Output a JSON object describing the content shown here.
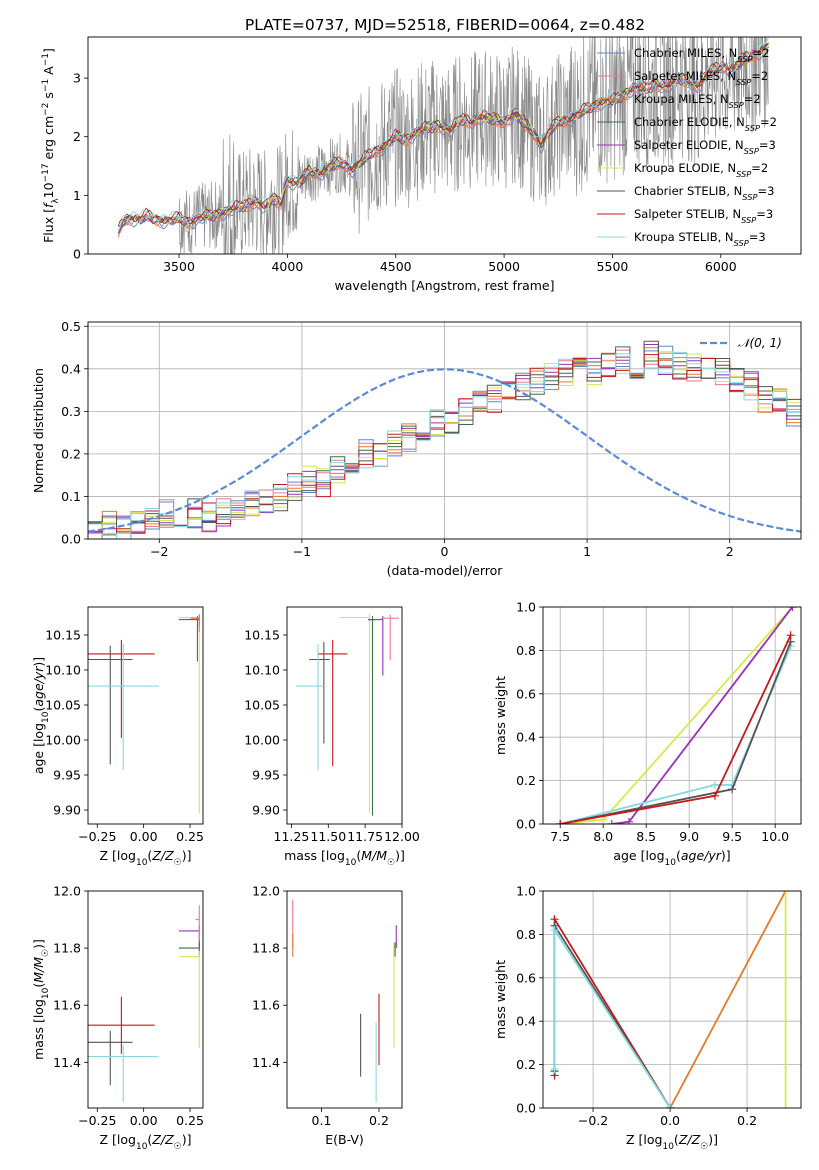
{
  "title": "PLATE=0737, MJD=52518, FIBERID=0064, z=0.482",
  "colors": {
    "chabrier_miles": "#5b86c9",
    "salpeter_miles": "#e87a8e",
    "kroupa_miles": "#e8792a",
    "chabrier_elodie": "#3c6e48",
    "salpeter_elodie": "#9b30b8",
    "kroupa_elodie": "#d7e84a",
    "chabrier_stelib": "#555555",
    "salpeter_stelib": "#c41a1a",
    "kroupa_stelib": "#86d8e0",
    "data": "#888888",
    "grid": "#b0b0b0",
    "gaussian": "#5b8bd8"
  },
  "chart_data": [
    {
      "id": "spectrum",
      "type": "line",
      "title": "PLATE=0737, MJD=52518, FIBERID=0064, z=0.482",
      "xlabel": "wavelength [Angstrom, rest frame]",
      "ylabel": "Flux [f_λ 10^-17 erg cm^-2 s^-1 A^-1]",
      "xlim": [
        3080,
        6370
      ],
      "ylim": [
        0,
        3.7
      ],
      "xticks": [
        3500,
        4000,
        4500,
        5000,
        5500,
        6000
      ],
      "yticks": [
        0,
        1,
        2,
        3
      ],
      "grid": false,
      "legend_loc": "upper right",
      "legend": [
        {
          "key": "chabrier_miles",
          "label": "Chabrier MILES, N_SSP=2"
        },
        {
          "key": "salpeter_miles",
          "label": "Salpeter MILES, N_SSP=2"
        },
        {
          "key": "kroupa_miles",
          "label": "Kroupa MILES, N_SSP=2"
        },
        {
          "key": "chabrier_elodie",
          "label": "Chabrier ELODIE, N_SSP=2"
        },
        {
          "key": "salpeter_elodie",
          "label": "Salpeter ELODIE, N_SSP=3"
        },
        {
          "key": "kroupa_elodie",
          "label": "Kroupa ELODIE, N_SSP=2"
        },
        {
          "key": "chabrier_stelib",
          "label": "Chabrier STELIB, N_SSP=3"
        },
        {
          "key": "salpeter_stelib",
          "label": "Salpeter STELIB, N_SSP=3"
        },
        {
          "key": "kroupa_stelib",
          "label": "Kroupa STELIB, N_SSP=3"
        }
      ],
      "model_x": [
        3220,
        3240,
        3260,
        3280,
        3300,
        3320,
        3350,
        3380,
        3420,
        3450,
        3500,
        3550,
        3600,
        3650,
        3700,
        3750,
        3800,
        3850,
        3900,
        3930,
        3970,
        4000,
        4050,
        4100,
        4150,
        4200,
        4250,
        4300,
        4350,
        4400,
        4450,
        4500,
        4550,
        4600,
        4650,
        4700,
        4750,
        4800,
        4850,
        4900,
        4950,
        5000,
        5050,
        5100,
        5150,
        5175,
        5200,
        5250,
        5300,
        5350,
        5400,
        5450,
        5500,
        5550,
        5600,
        5650,
        5700,
        5750,
        5800,
        5850,
        5890,
        5950,
        6000,
        6050,
        6100,
        6150,
        6200,
        6220
      ],
      "model_y": [
        0.38,
        0.55,
        0.6,
        0.62,
        0.6,
        0.58,
        0.65,
        0.6,
        0.58,
        0.57,
        0.6,
        0.55,
        0.62,
        0.65,
        0.7,
        0.78,
        0.82,
        0.9,
        0.8,
        0.95,
        0.85,
        1.25,
        1.2,
        1.4,
        1.38,
        1.5,
        1.55,
        1.45,
        1.6,
        1.75,
        1.85,
        2.0,
        1.95,
        2.1,
        2.15,
        2.2,
        2.1,
        2.3,
        2.25,
        2.35,
        2.3,
        2.25,
        2.4,
        2.2,
        2.0,
        1.85,
        2.05,
        2.25,
        2.3,
        2.4,
        2.5,
        2.6,
        2.6,
        2.7,
        2.85,
        2.8,
        2.9,
        2.85,
        3.0,
        2.95,
        2.85,
        3.1,
        3.2,
        3.15,
        3.3,
        3.4,
        3.5,
        3.55
      ],
      "data_note": "observed spectrum drawn as noisy grey trace"
    },
    {
      "id": "residuals",
      "type": "line",
      "xlabel": "(data-model)/error",
      "ylabel": "Normed distribution",
      "xlim": [
        -2.5,
        2.5
      ],
      "ylim": [
        0,
        0.51
      ],
      "xticks": [
        -2,
        -1,
        0,
        1,
        2
      ],
      "yticks": [
        0.0,
        0.1,
        0.2,
        0.3,
        0.4,
        0.5
      ],
      "grid": true,
      "legend_loc": "upper right",
      "gaussian_label": "𝒩(0, 1)",
      "bin_width": 0.1,
      "hist_base": [
        0.02,
        0.03,
        0.02,
        0.04,
        0.05,
        0.06,
        0.05,
        0.06,
        0.05,
        0.06,
        0.07,
        0.08,
        0.09,
        0.1,
        0.12,
        0.14,
        0.13,
        0.16,
        0.17,
        0.2,
        0.2,
        0.22,
        0.24,
        0.25,
        0.27,
        0.28,
        0.3,
        0.32,
        0.33,
        0.35,
        0.36,
        0.37,
        0.38,
        0.39,
        0.4,
        0.39,
        0.41,
        0.42,
        0.41,
        0.43,
        0.42,
        0.41,
        0.4,
        0.41,
        0.39,
        0.37,
        0.36,
        0.33,
        0.32,
        0.3,
        0.28,
        0.26,
        0.24,
        0.23,
        0.2,
        0.18,
        0.17,
        0.15,
        0.13,
        0.12,
        0.1,
        0.09,
        0.08,
        0.07,
        0.06,
        0.06,
        0.05,
        0.05,
        0.04,
        0.04,
        0.03,
        0.03,
        0.02,
        0.02,
        0.03,
        0.02,
        0.03,
        0.03,
        0.02,
        0.02
      ]
    },
    {
      "id": "age_vs_Z",
      "type": "scatter",
      "xlabel": "Z [log10(Z/Z☉)]",
      "ylabel": "age [log10(age/yr)]",
      "xlim": [
        -0.3,
        0.32
      ],
      "ylim": [
        9.88,
        10.19
      ],
      "xticks": [
        -0.25,
        0.0,
        0.25
      ],
      "yticks": [
        9.9,
        9.95,
        10.0,
        10.05,
        10.1,
        10.15
      ],
      "grid": false,
      "points": [
        {
          "key": "salpeter_stelib",
          "x": -0.12,
          "y": 10.123,
          "xerr": [
            0.18,
            0.18
          ],
          "yerr": [
            0.12,
            0.02
          ]
        },
        {
          "key": "chabrier_stelib",
          "x": -0.18,
          "y": 10.115,
          "xerr": [
            0.12,
            0.12
          ],
          "yerr": [
            0.15,
            0.02
          ]
        },
        {
          "key": "kroupa_stelib",
          "x": -0.11,
          "y": 10.077,
          "xerr": [
            0.19,
            0.19
          ],
          "yerr": [
            0.12,
            0.06
          ]
        },
        {
          "key": "kroupa_elodie",
          "x": 0.3,
          "y": 10.175,
          "xerr": [
            0.11,
            0.0
          ],
          "yerr": [
            0.28,
            0.005
          ]
        },
        {
          "key": "salpeter_elodie",
          "x": 0.29,
          "y": 10.172,
          "xerr": [
            0.1,
            0.01
          ],
          "yerr": [
            0.06,
            0.005
          ]
        },
        {
          "key": "salpeter_miles",
          "x": 0.3,
          "y": 10.174,
          "xerr": [
            0.05,
            0.0
          ],
          "yerr": [
            0.02,
            0.005
          ]
        },
        {
          "key": "kroupa_miles",
          "x": 0.3,
          "y": 10.174,
          "xerr": [
            0.04,
            0.0
          ],
          "yerr": [
            0.01,
            0.005
          ]
        }
      ]
    },
    {
      "id": "age_vs_mass",
      "type": "scatter",
      "xlabel": "mass [log10(M/M☉)]",
      "ylabel": "",
      "xlim": [
        11.22,
        12.0
      ],
      "ylim": [
        9.88,
        10.19
      ],
      "xticks": [
        11.25,
        11.5,
        11.75,
        12.0
      ],
      "yticks": [
        9.9,
        9.95,
        10.0,
        10.05,
        10.1,
        10.15
      ],
      "grid": false,
      "points": [
        {
          "key": "salpeter_stelib",
          "x": 11.53,
          "y": 10.123,
          "xerr": [
            0.1,
            0.1
          ],
          "yerr": [
            0.16,
            0.02
          ]
        },
        {
          "key": "chabrier_stelib",
          "x": 11.47,
          "y": 10.115,
          "xerr": [
            0.1,
            0.04
          ],
          "yerr": [
            0.12,
            0.025
          ]
        },
        {
          "key": "kroupa_stelib",
          "x": 11.43,
          "y": 10.077,
          "xerr": [
            0.15,
            0.04
          ],
          "yerr": [
            0.12,
            0.06
          ]
        },
        {
          "key": "kroupa_elodie",
          "x": 11.78,
          "y": 10.175,
          "xerr": [
            0.2,
            0.0
          ],
          "yerr": [
            0.28,
            0.005
          ]
        },
        {
          "key": "salpeter_elodie",
          "x": 11.87,
          "y": 10.172,
          "xerr": [
            0.1,
            0.0
          ],
          "yerr": [
            0.08,
            0.005
          ]
        },
        {
          "key": "salpeter_miles",
          "x": 11.92,
          "y": 10.174,
          "xerr": [
            0.06,
            0.06
          ],
          "yerr": [
            0.06,
            0.005
          ]
        },
        {
          "key": "chabrier_elodie",
          "x": 11.8,
          "y": 10.172,
          "xerr": [
            0.03,
            0.02
          ],
          "yerr": [
            0.28,
            0.005
          ]
        }
      ]
    },
    {
      "id": "cum_mass_vs_age",
      "type": "line",
      "xlabel": "age log10(age/yr)",
      "ylabel": "mass weight",
      "xlim": [
        7.3,
        10.3
      ],
      "ylim": [
        0,
        1.0
      ],
      "xticks": [
        7.5,
        8.0,
        8.5,
        9.0,
        9.5,
        10.0
      ],
      "yticks": [
        0.0,
        0.2,
        0.4,
        0.6,
        0.8,
        1.0
      ],
      "grid": true,
      "series": [
        {
          "key": "kroupa_elodie",
          "x": [
            7.5,
            8.0,
            10.2
          ],
          "y": [
            0.0,
            0.02,
            1.0
          ]
        },
        {
          "key": "salpeter_elodie",
          "x": [
            8.1,
            8.3,
            10.2
          ],
          "y": [
            0.0,
            0.01,
            1.0
          ]
        },
        {
          "key": "kroupa_stelib",
          "x": [
            7.5,
            9.3,
            9.5,
            10.18
          ],
          "y": [
            0.0,
            0.18,
            0.18,
            0.82
          ]
        },
        {
          "key": "chabrier_stelib",
          "x": [
            7.5,
            9.5,
            10.18
          ],
          "y": [
            0.0,
            0.16,
            0.84
          ]
        },
        {
          "key": "salpeter_stelib",
          "x": [
            7.5,
            9.3,
            10.18
          ],
          "y": [
            0.0,
            0.13,
            0.87
          ]
        }
      ]
    },
    {
      "id": "mass_vs_Z",
      "type": "scatter",
      "xlabel": "Z [log10(Z/Z☉)]",
      "ylabel": "mass [log10(M/M☉)]",
      "xlim": [
        -0.3,
        0.32
      ],
      "ylim": [
        11.24,
        12.0
      ],
      "xticks": [
        -0.25,
        0.0,
        0.25
      ],
      "yticks": [
        11.4,
        11.6,
        11.8,
        12.0
      ],
      "grid": false,
      "points": [
        {
          "key": "salpeter_stelib",
          "x": -0.12,
          "y": 11.53,
          "xerr": [
            0.18,
            0.18
          ],
          "yerr": [
            0.1,
            0.1
          ]
        },
        {
          "key": "chabrier_stelib",
          "x": -0.18,
          "y": 11.47,
          "xerr": [
            0.12,
            0.12
          ],
          "yerr": [
            0.15,
            0.04
          ]
        },
        {
          "key": "kroupa_stelib",
          "x": -0.11,
          "y": 11.42,
          "xerr": [
            0.19,
            0.19
          ],
          "yerr": [
            0.16,
            0.04
          ]
        },
        {
          "key": "salpeter_elodie",
          "x": 0.3,
          "y": 11.86,
          "xerr": [
            0.11,
            0.0
          ],
          "yerr": [
            0.06,
            0.02
          ]
        },
        {
          "key": "chabrier_elodie",
          "x": 0.3,
          "y": 11.8,
          "xerr": [
            0.11,
            0.0
          ],
          "yerr": [
            0.03,
            0.02
          ]
        },
        {
          "key": "kroupa_elodie",
          "x": 0.3,
          "y": 11.77,
          "xerr": [
            0.11,
            0.0
          ],
          "yerr": [
            0.32,
            0.02
          ]
        },
        {
          "key": "salpeter_miles",
          "x": 0.3,
          "y": 11.9,
          "xerr": [
            0.02,
            0.0
          ],
          "yerr": [
            0.07,
            0.05
          ]
        }
      ]
    },
    {
      "id": "mass_vs_ebv",
      "type": "scatter",
      "xlabel": "E(B-V)",
      "ylabel": "",
      "xlim": [
        0.04,
        0.24
      ],
      "ylim": [
        11.24,
        12.0
      ],
      "xticks": [
        0.1,
        0.2
      ],
      "yticks": [
        11.4,
        11.6,
        11.8,
        12.0
      ],
      "grid": false,
      "points": [
        {
          "key": "salpeter_miles",
          "x": 0.05,
          "y": 11.85,
          "yerr": [
            0.05,
            0.12
          ]
        },
        {
          "key": "kroupa_miles",
          "x": 0.05,
          "y": 11.8,
          "yerr": [
            0.03,
            0.05
          ]
        },
        {
          "key": "chabrier_stelib",
          "x": 0.168,
          "y": 11.47,
          "yerr": [
            0.12,
            0.1
          ]
        },
        {
          "key": "kroupa_stelib",
          "x": 0.195,
          "y": 11.42,
          "yerr": [
            0.16,
            0.12
          ]
        },
        {
          "key": "salpeter_stelib",
          "x": 0.2,
          "y": 11.53,
          "yerr": [
            0.14,
            0.11
          ]
        },
        {
          "key": "kroupa_elodie",
          "x": 0.226,
          "y": 11.77,
          "yerr": [
            0.32,
            0.05
          ]
        },
        {
          "key": "chabrier_elodie",
          "x": 0.228,
          "y": 11.8,
          "yerr": [
            0.03,
            0.02
          ]
        },
        {
          "key": "salpeter_elodie",
          "x": 0.23,
          "y": 11.86,
          "yerr": [
            0.06,
            0.02
          ]
        }
      ]
    },
    {
      "id": "cum_mass_vs_Z",
      "type": "line",
      "xlabel": "Z [log10(Z/Z☉)]",
      "ylabel": "mass weight",
      "xlim": [
        -0.33,
        0.34
      ],
      "ylim": [
        0,
        1.0
      ],
      "xticks": [
        -0.2,
        0.0,
        0.2
      ],
      "yticks": [
        0.0,
        0.2,
        0.4,
        0.6,
        0.8,
        1.0
      ],
      "grid": true,
      "series": [
        {
          "key": "kroupa_miles",
          "x": [
            0.0,
            0.3
          ],
          "y": [
            0.0,
            1.0
          ]
        },
        {
          "key": "kroupa_elodie",
          "x": [
            0.3,
            0.3
          ],
          "y": [
            0.0,
            1.0
          ]
        },
        {
          "key": "salpeter_stelib",
          "x": [
            -0.3,
            -0.3,
            0.0
          ],
          "y": [
            0.15,
            0.87,
            0.0
          ]
        },
        {
          "key": "chabrier_stelib",
          "x": [
            -0.3,
            -0.3,
            0.0
          ],
          "y": [
            0.17,
            0.84,
            0.0
          ]
        },
        {
          "key": "kroupa_stelib",
          "x": [
            -0.3,
            -0.3,
            0.0
          ],
          "y": [
            0.18,
            0.82,
            0.0
          ]
        }
      ]
    }
  ]
}
